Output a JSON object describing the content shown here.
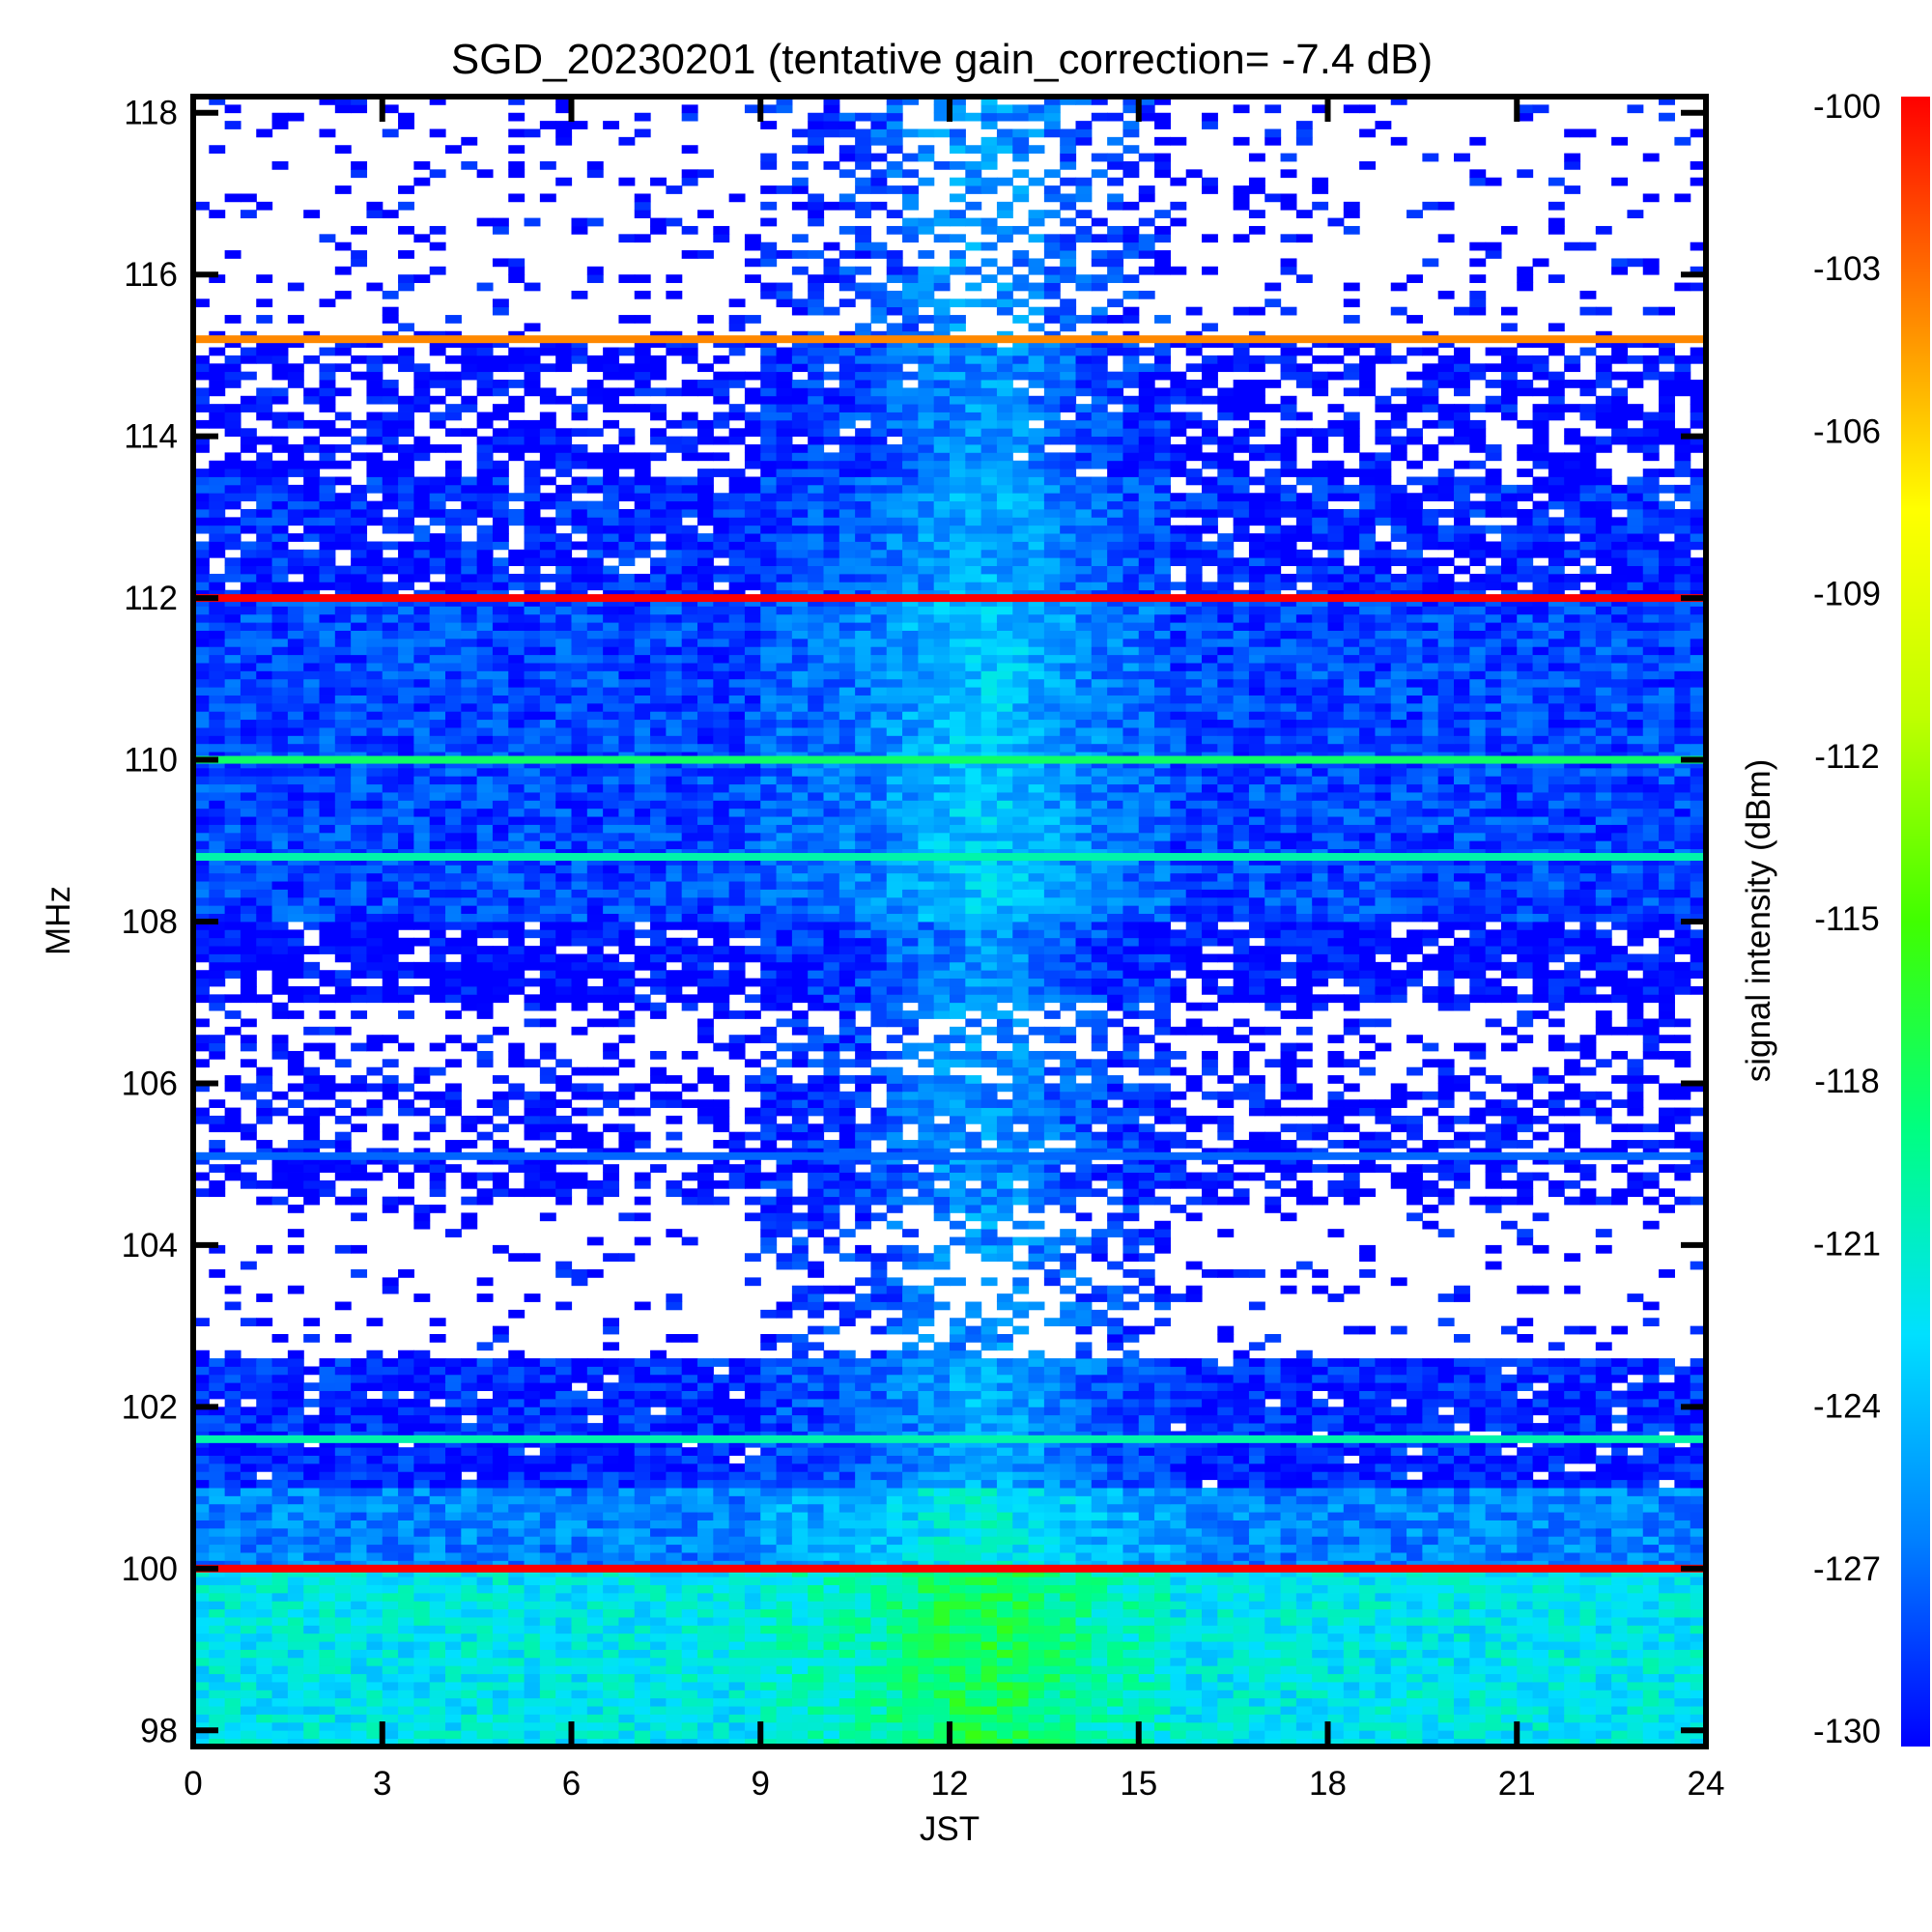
{
  "chart_data": {
    "type": "heatmap",
    "title": "SGD_20230201 (tentative gain_correction= -7.4 dB)",
    "xlabel": "JST",
    "ylabel": "MHz",
    "colorbar_label": "signal intensity (dBm)",
    "xlim": [
      0,
      24
    ],
    "ylim": [
      97.8,
      118.2
    ],
    "x_ticks": [
      "0",
      "3",
      "6",
      "9",
      "12",
      "15",
      "18",
      "21",
      "24"
    ],
    "x_tick_values": [
      0,
      3,
      6,
      9,
      12,
      15,
      18,
      21,
      24
    ],
    "y_ticks": [
      "98",
      "100",
      "102",
      "104",
      "106",
      "108",
      "110",
      "112",
      "114",
      "116",
      "118"
    ],
    "y_tick_values": [
      98,
      100,
      102,
      104,
      106,
      108,
      110,
      112,
      114,
      116,
      118
    ],
    "colorbar_ticks": [
      "-100",
      "-103",
      "-106",
      "-109",
      "-112",
      "-115",
      "-118",
      "-121",
      "-124",
      "-127",
      "-130"
    ],
    "colorbar_tick_values": [
      -100,
      -103,
      -106,
      -109,
      -112,
      -115,
      -118,
      -121,
      -124,
      -127,
      -130
    ],
    "colorbar_range": [
      -130,
      -100
    ],
    "colormap": [
      "#0000ff",
      "#0080ff",
      "#00e0ff",
      "#00ff80",
      "#40ff00",
      "#c0ff00",
      "#ffff00",
      "#ff8000",
      "#ff0000"
    ],
    "strong_lines": [
      {
        "mhz": 115.2,
        "dbm": -104
      },
      {
        "mhz": 112.0,
        "dbm": -100
      },
      {
        "mhz": 110.0,
        "dbm": -118
      },
      {
        "mhz": 108.8,
        "dbm": -120
      },
      {
        "mhz": 105.1,
        "dbm": -127
      },
      {
        "mhz": 101.6,
        "dbm": -120
      },
      {
        "mhz": 100.0,
        "dbm": -100
      }
    ],
    "bands": [
      {
        "from": 97.8,
        "to": 100.0,
        "dbm": -122,
        "fill": 1.0
      },
      {
        "from": 100.0,
        "to": 101.0,
        "dbm": -126,
        "fill": 1.0
      },
      {
        "from": 101.0,
        "to": 102.6,
        "dbm": -129,
        "fill": 0.95
      },
      {
        "from": 102.6,
        "to": 104.5,
        "dbm": -130,
        "fill": 0.12
      },
      {
        "from": 104.5,
        "to": 106.0,
        "dbm": -130,
        "fill": 0.55
      },
      {
        "from": 106.0,
        "to": 107.0,
        "dbm": -130,
        "fill": 0.3
      },
      {
        "from": 107.0,
        "to": 108.0,
        "dbm": -130,
        "fill": 0.8
      },
      {
        "from": 108.0,
        "to": 112.0,
        "dbm": -128,
        "fill": 1.0
      },
      {
        "from": 112.0,
        "to": 113.5,
        "dbm": -129,
        "fill": 0.85
      },
      {
        "from": 113.5,
        "to": 115.2,
        "dbm": -130,
        "fill": 0.6
      },
      {
        "from": 115.2,
        "to": 118.2,
        "dbm": -130,
        "fill": 0.15
      }
    ],
    "daytime_enhancement": {
      "from_hour": 9,
      "to_hour": 15.5,
      "peak_hour": 12.5
    }
  }
}
